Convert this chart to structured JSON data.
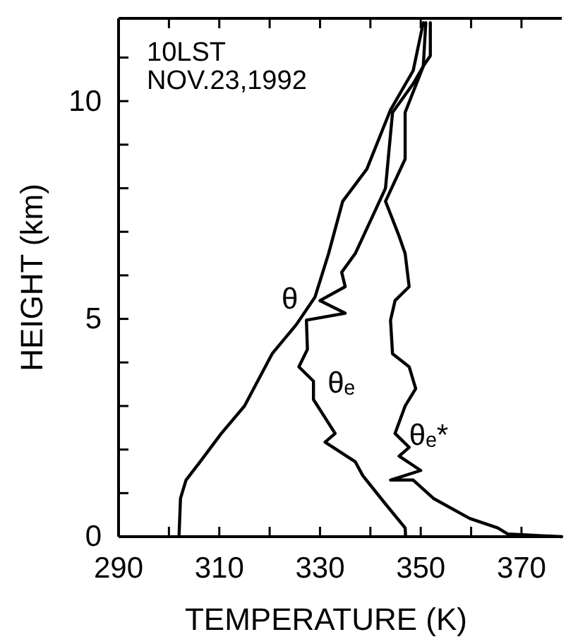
{
  "chart_data": {
    "type": "line",
    "xlabel": "TEMPERATURE (K)",
    "ylabel": "HEIGHT (km)",
    "xlim": [
      290,
      378
    ],
    "ylim": [
      0,
      11.9
    ],
    "xticks": [
      290,
      {
        "value": 300,
        "label": null
      },
      310,
      {
        "value": 320,
        "label": null
      },
      330,
      {
        "value": 340,
        "label": null
      },
      350,
      {
        "value": 360,
        "label": null
      },
      370
    ],
    "yticks": [
      0,
      {
        "value": 1,
        "label": null
      },
      {
        "value": 2,
        "label": null
      },
      {
        "value": 3,
        "label": null
      },
      {
        "value": 4,
        "label": null
      },
      5,
      {
        "value": 6,
        "label": null
      },
      {
        "value": 7,
        "label": null
      },
      {
        "value": 8,
        "label": null
      },
      {
        "value": 9,
        "label": null
      },
      10,
      {
        "value": 11,
        "label": null
      }
    ],
    "grid": false,
    "marker": "none",
    "line_style": "solid",
    "annotations": [
      "10LST",
      "NOV.23,1992"
    ],
    "series": [
      {
        "name": "θ",
        "color": "#000000",
        "x": [
          302,
          302.3,
          303.4,
          306.2,
          310.4,
          315,
          320.5,
          325.3,
          329,
          331.7,
          334.5,
          339.3,
          344,
          348.5,
          350.5
        ],
        "values": [
          0,
          0.88,
          1.3,
          1.72,
          2.37,
          3.0,
          4.2,
          4.87,
          5.5,
          6.5,
          7.7,
          8.44,
          9.8,
          10.7,
          11.8
        ]
      },
      {
        "name": "θₑ",
        "color": "#000000",
        "x": [
          347,
          346.9,
          343,
          338.5,
          337,
          331,
          333,
          328.7,
          328.7,
          325.8,
          327.5,
          327.3,
          335,
          330,
          335,
          334.3,
          337,
          343,
          344.4,
          348.5,
          350.5,
          351
        ],
        "values": [
          0,
          0.2,
          0.75,
          1.4,
          1.72,
          2.17,
          2.37,
          3.15,
          3.57,
          3.9,
          4.3,
          4.97,
          5.13,
          5.42,
          5.74,
          6.07,
          6.5,
          8.0,
          9.74,
          10.4,
          10.8,
          11.8
        ]
      },
      {
        "name": "θₑ*",
        "color": "#000000",
        "x": [
          378,
          367.3,
          365.3,
          359.7,
          352.5,
          348.5,
          344,
          350,
          345.7,
          347.7,
          344.9,
          346.9,
          349,
          347.7,
          344.4,
          344,
          344.9,
          347.7,
          346.9,
          345.7,
          343,
          346.9,
          346.9,
          350.5,
          351.9,
          351.9
        ],
        "values": [
          0,
          0.06,
          0.2,
          0.42,
          0.88,
          1.3,
          1.3,
          1.52,
          1.85,
          2.05,
          2.37,
          3.0,
          3.4,
          3.9,
          4.2,
          4.97,
          5.42,
          5.74,
          6.5,
          6.9,
          7.7,
          8.67,
          9.74,
          10.8,
          11.04,
          11.8
        ]
      }
    ]
  }
}
